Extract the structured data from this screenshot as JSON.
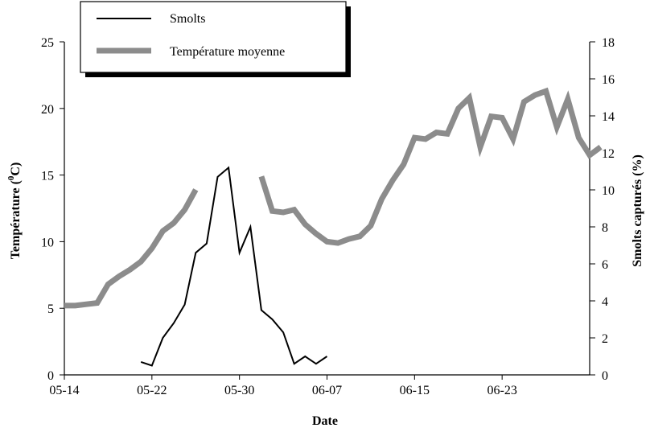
{
  "chart_data": {
    "type": "line",
    "xlabel": "Date",
    "ylabel_left": "Température (",
    "ylabel_left_sup": "0",
    "ylabel_left_end": "C)",
    "ylabel_right": "Smolts capturés (%)",
    "x_ticks": [
      "05-14",
      "05-22",
      "05-30",
      "06-07",
      "06-15",
      "06-23"
    ],
    "y_left_ticks": [
      "0",
      "5",
      "10",
      "15",
      "20",
      "25"
    ],
    "y_right_ticks": [
      "0",
      "2",
      "4",
      "6",
      "8",
      "10",
      "12",
      "14",
      "16",
      "18"
    ],
    "ylim_left": [
      0,
      25
    ],
    "ylim_right": [
      0,
      18
    ],
    "x_range_days": [
      0,
      48
    ],
    "legend": {
      "placement": "top-left",
      "entries": [
        "Smolts",
        "Température moyenne"
      ]
    },
    "grid": false,
    "series": [
      {
        "name": "Smolts",
        "axis": "right",
        "color": "#000000",
        "points": [
          [
            "05-21",
            0.7
          ],
          [
            "05-22",
            0.5
          ],
          [
            "05-23",
            2.0
          ],
          [
            "05-24",
            2.8
          ],
          [
            "05-25",
            3.8
          ],
          [
            "05-26",
            6.6
          ],
          [
            "05-27",
            7.1
          ],
          [
            "05-28",
            10.7
          ],
          [
            "05-29",
            11.2
          ],
          [
            "05-30",
            6.6
          ],
          [
            "05-31",
            8.0
          ],
          [
            "06-01",
            3.5
          ],
          [
            "06-02",
            3.0
          ],
          [
            "06-03",
            2.3
          ],
          [
            "06-04",
            0.6
          ],
          [
            "06-05",
            1.0
          ],
          [
            "06-06",
            0.6
          ],
          [
            "06-07",
            1.0
          ]
        ]
      },
      {
        "name": "Température moyenne",
        "axis": "left",
        "color": "#8c8c8c",
        "segments": [
          [
            [
              "05-14",
              5.2
            ],
            [
              "05-15",
              5.2
            ],
            [
              "05-16",
              5.3
            ],
            [
              "05-17",
              5.4
            ],
            [
              "05-18",
              6.8
            ],
            [
              "05-19",
              7.4
            ],
            [
              "05-20",
              7.9
            ],
            [
              "05-21",
              8.5
            ],
            [
              "05-22",
              9.5
            ],
            [
              "05-23",
              10.8
            ],
            [
              "05-24",
              11.4
            ],
            [
              "05-25",
              12.4
            ],
            [
              "05-26",
              13.9
            ]
          ],
          [
            [
              "06-01",
              14.9
            ],
            [
              "06-02",
              12.3
            ],
            [
              "06-03",
              12.2
            ],
            [
              "06-04",
              12.4
            ],
            [
              "06-05",
              11.3
            ],
            [
              "06-06",
              10.6
            ],
            [
              "06-07",
              10.0
            ],
            [
              "06-08",
              9.9
            ],
            [
              "06-09",
              10.2
            ],
            [
              "06-10",
              10.4
            ],
            [
              "06-11",
              11.2
            ],
            [
              "06-12",
              13.2
            ],
            [
              "06-13",
              14.6
            ],
            [
              "06-14",
              15.8
            ],
            [
              "06-15",
              17.8
            ],
            [
              "06-16",
              17.7
            ],
            [
              "06-17",
              18.2
            ],
            [
              "06-18",
              18.1
            ],
            [
              "06-19",
              20.0
            ],
            [
              "06-20",
              20.8
            ],
            [
              "06-21",
              17.1
            ],
            [
              "06-22",
              19.4
            ],
            [
              "06-23",
              19.3
            ],
            [
              "06-24",
              17.7
            ],
            [
              "06-25",
              20.5
            ],
            [
              "06-26",
              21.0
            ],
            [
              "06-27",
              21.3
            ],
            [
              "06-28",
              18.6
            ],
            [
              "06-29",
              20.7
            ],
            [
              "06-30",
              17.8
            ],
            [
              "07-01",
              16.5
            ],
            [
              "07-02",
              17.1
            ]
          ]
        ]
      }
    ]
  }
}
